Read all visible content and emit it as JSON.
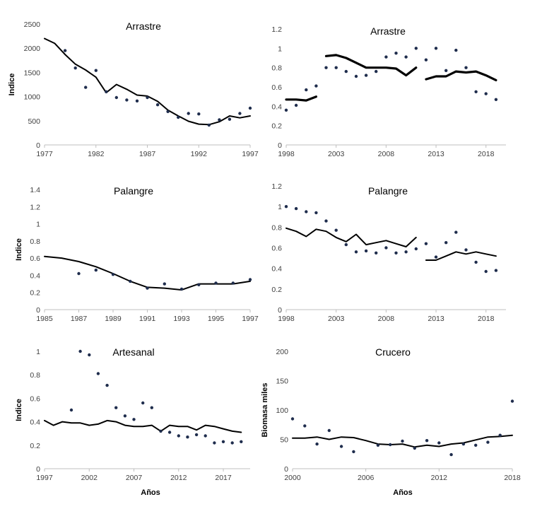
{
  "xlabel": "Años",
  "chart_data": [
    {
      "type": "line",
      "title": "Arrastre",
      "ylabel": "Indice",
      "xlim": [
        1977,
        1997
      ],
      "ylim": [
        0,
        2500
      ],
      "xticks": [
        1977,
        1982,
        1987,
        1992,
        1997
      ],
      "yticks": [
        0,
        500,
        1000,
        1500,
        2000,
        2500
      ],
      "line_width": "thin",
      "series": [
        {
          "type": "line",
          "x": [
            1977,
            1978,
            1979,
            1980,
            1981,
            1982,
            1983,
            1984,
            1985,
            1986,
            1987,
            1988,
            1989,
            1990,
            1991,
            1992,
            1993,
            1994,
            1995,
            1996,
            1997
          ],
          "y": [
            2200,
            2100,
            1870,
            1670,
            1550,
            1400,
            1080,
            1250,
            1150,
            1030,
            1010,
            900,
            720,
            600,
            490,
            430,
            420,
            480,
            600,
            560,
            600
          ]
        },
        {
          "type": "scatter",
          "x": [
            1979,
            1980,
            1981,
            1982,
            1983,
            1984,
            1985,
            1986,
            1987,
            1988,
            1989,
            1990,
            1991,
            1992,
            1993,
            1994,
            1995,
            1996,
            1997
          ],
          "y": [
            1950,
            1590,
            1190,
            1540,
            1100,
            980,
            930,
            910,
            980,
            830,
            690,
            570,
            650,
            640,
            410,
            520,
            530,
            650,
            760
          ]
        }
      ]
    },
    {
      "type": "line",
      "title": "Arrastre",
      "ylabel": "",
      "xlim": [
        1998,
        2020
      ],
      "ylim": [
        0,
        1.2
      ],
      "xticks": [
        1998,
        2003,
        2008,
        2013,
        2018
      ],
      "yticks": [
        0,
        0.2,
        0.4,
        0.6,
        0.8,
        1,
        1.2
      ],
      "line_width": "thick",
      "series": [
        {
          "type": "line",
          "x": [
            1998,
            1999,
            2000,
            2001
          ],
          "y": [
            0.47,
            0.47,
            0.46,
            0.5
          ]
        },
        {
          "type": "line",
          "x": [
            2002,
            2003,
            2004,
            2005,
            2006,
            2007,
            2008,
            2009,
            2010,
            2011
          ],
          "y": [
            0.92,
            0.93,
            0.9,
            0.85,
            0.8,
            0.8,
            0.8,
            0.79,
            0.72,
            0.8
          ]
        },
        {
          "type": "line",
          "x": [
            2012,
            2013,
            2014,
            2015,
            2016,
            2017,
            2018,
            2019
          ],
          "y": [
            0.68,
            0.71,
            0.71,
            0.76,
            0.75,
            0.76,
            0.72,
            0.67
          ]
        },
        {
          "type": "scatter",
          "x": [
            1998,
            1999,
            2000,
            2001,
            2002,
            2003,
            2004,
            2005,
            2006,
            2007,
            2008,
            2009,
            2010,
            2011,
            2012,
            2013,
            2014,
            2015,
            2016,
            2017,
            2018,
            2019
          ],
          "y": [
            0.36,
            0.41,
            0.57,
            0.61,
            0.8,
            0.8,
            0.76,
            0.71,
            0.72,
            0.76,
            0.91,
            0.95,
            0.91,
            1.0,
            0.88,
            1.0,
            0.77,
            0.98,
            0.8,
            0.55,
            0.53,
            0.47
          ]
        }
      ]
    },
    {
      "type": "line",
      "title": "Palangre",
      "ylabel": "Indice",
      "xlim": [
        1985,
        1997
      ],
      "ylim": [
        0,
        1.4
      ],
      "xticks": [
        1985,
        1987,
        1989,
        1991,
        1993,
        1995,
        1997
      ],
      "yticks": [
        0,
        0.2,
        0.4,
        0.6,
        0.8,
        1,
        1.2,
        1.4
      ],
      "line_width": "thin",
      "series": [
        {
          "type": "line",
          "x": [
            1985,
            1986,
            1987,
            1988,
            1989,
            1990,
            1991,
            1992,
            1993,
            1994,
            1995,
            1996,
            1997
          ],
          "y": [
            0.62,
            0.6,
            0.56,
            0.5,
            0.42,
            0.33,
            0.26,
            0.25,
            0.23,
            0.3,
            0.3,
            0.3,
            0.33
          ]
        },
        {
          "type": "scatter",
          "x": [
            1987,
            1988,
            1989,
            1990,
            1991,
            1992,
            1993,
            1994,
            1995,
            1996,
            1997
          ],
          "y": [
            0.42,
            0.46,
            0.41,
            0.33,
            0.25,
            0.3,
            0.24,
            0.29,
            0.31,
            0.31,
            0.35
          ]
        }
      ]
    },
    {
      "type": "line",
      "title": "Palangre",
      "ylabel": "",
      "xlim": [
        1998,
        2020
      ],
      "ylim": [
        0,
        1.2
      ],
      "xticks": [
        1998,
        2003,
        2008,
        2013,
        2018
      ],
      "yticks": [
        0,
        0.2,
        0.4,
        0.6,
        0.8,
        1,
        1.2
      ],
      "line_width": "thin",
      "series": [
        {
          "type": "line",
          "x": [
            1998,
            1999,
            2000,
            2001,
            2002,
            2003,
            2004,
            2005,
            2006,
            2007,
            2008,
            2009,
            2010,
            2011
          ],
          "y": [
            0.79,
            0.76,
            0.71,
            0.78,
            0.76,
            0.7,
            0.66,
            0.73,
            0.63,
            0.65,
            0.67,
            0.64,
            0.61,
            0.7
          ]
        },
        {
          "type": "line",
          "x": [
            2012,
            2013,
            2014,
            2015,
            2016,
            2017,
            2018,
            2019
          ],
          "y": [
            0.48,
            0.48,
            0.52,
            0.56,
            0.54,
            0.56,
            0.54,
            0.52
          ]
        },
        {
          "type": "scatter",
          "x": [
            1998,
            1999,
            2000,
            2001,
            2002,
            2003,
            2004,
            2005,
            2006,
            2007,
            2008,
            2009,
            2010,
            2011,
            2012,
            2013,
            2014,
            2015,
            2016,
            2017,
            2018,
            2019
          ],
          "y": [
            1.0,
            0.98,
            0.95,
            0.94,
            0.86,
            0.77,
            0.63,
            0.56,
            0.57,
            0.55,
            0.6,
            0.55,
            0.56,
            0.59,
            0.64,
            0.51,
            0.65,
            0.75,
            0.58,
            0.46,
            0.37,
            0.38
          ]
        }
      ]
    },
    {
      "type": "line",
      "title": "Artesanal",
      "ylabel": "Indice",
      "xlim": [
        1997,
        2020
      ],
      "ylim": [
        0,
        1
      ],
      "xticks": [
        1997,
        2002,
        2007,
        2012,
        2017
      ],
      "yticks": [
        0,
        0.2,
        0.4,
        0.6,
        0.8,
        1
      ],
      "line_width": "thin",
      "series": [
        {
          "type": "line",
          "x": [
            1997,
            1998,
            1999,
            2000,
            2001,
            2002,
            2003,
            2004,
            2005,
            2006,
            2007,
            2008,
            2009,
            2010,
            2011,
            2012,
            2013,
            2014,
            2015,
            2016,
            2017,
            2018,
            2019
          ],
          "y": [
            0.41,
            0.37,
            0.4,
            0.39,
            0.39,
            0.37,
            0.38,
            0.41,
            0.4,
            0.37,
            0.36,
            0.36,
            0.37,
            0.32,
            0.37,
            0.36,
            0.36,
            0.33,
            0.37,
            0.36,
            0.34,
            0.32,
            0.31
          ]
        },
        {
          "type": "scatter",
          "x": [
            2000,
            2001,
            2002,
            2003,
            2004,
            2005,
            2006,
            2007,
            2008,
            2009,
            2010,
            2011,
            2012,
            2013,
            2014,
            2015,
            2016,
            2017,
            2018,
            2019
          ],
          "y": [
            0.5,
            1.0,
            0.97,
            0.81,
            0.71,
            0.52,
            0.45,
            0.42,
            0.56,
            0.52,
            0.32,
            0.31,
            0.28,
            0.27,
            0.29,
            0.28,
            0.22,
            0.23,
            0.22,
            0.23
          ]
        }
      ]
    },
    {
      "type": "line",
      "title": "Crucero",
      "ylabel": "Biomasa  miles",
      "xlim": [
        2000,
        2018
      ],
      "ylim": [
        0,
        200
      ],
      "xticks": [
        2000,
        2006,
        2012,
        2018
      ],
      "yticks": [
        0,
        50,
        100,
        150,
        200
      ],
      "line_width": "thin",
      "series": [
        {
          "type": "line",
          "x": [
            2000,
            2001,
            2002,
            2003,
            2004,
            2005,
            2006,
            2007,
            2008,
            2009,
            2010,
            2011,
            2012,
            2013,
            2014,
            2015,
            2016,
            2017,
            2018
          ],
          "y": [
            52,
            52,
            54,
            50,
            54,
            53,
            48,
            42,
            41,
            42,
            37,
            40,
            38,
            42,
            44,
            49,
            54,
            55,
            57
          ]
        },
        {
          "type": "scatter",
          "x": [
            2000,
            2001,
            2002,
            2003,
            2004,
            2005,
            2007,
            2008,
            2009,
            2010,
            2011,
            2012,
            2013,
            2014,
            2015,
            2016,
            2017,
            2018
          ],
          "y": [
            85,
            73,
            42,
            65,
            38,
            29,
            40,
            41,
            47,
            35,
            48,
            44,
            24,
            42,
            40,
            45,
            57,
            115
          ]
        }
      ]
    }
  ]
}
